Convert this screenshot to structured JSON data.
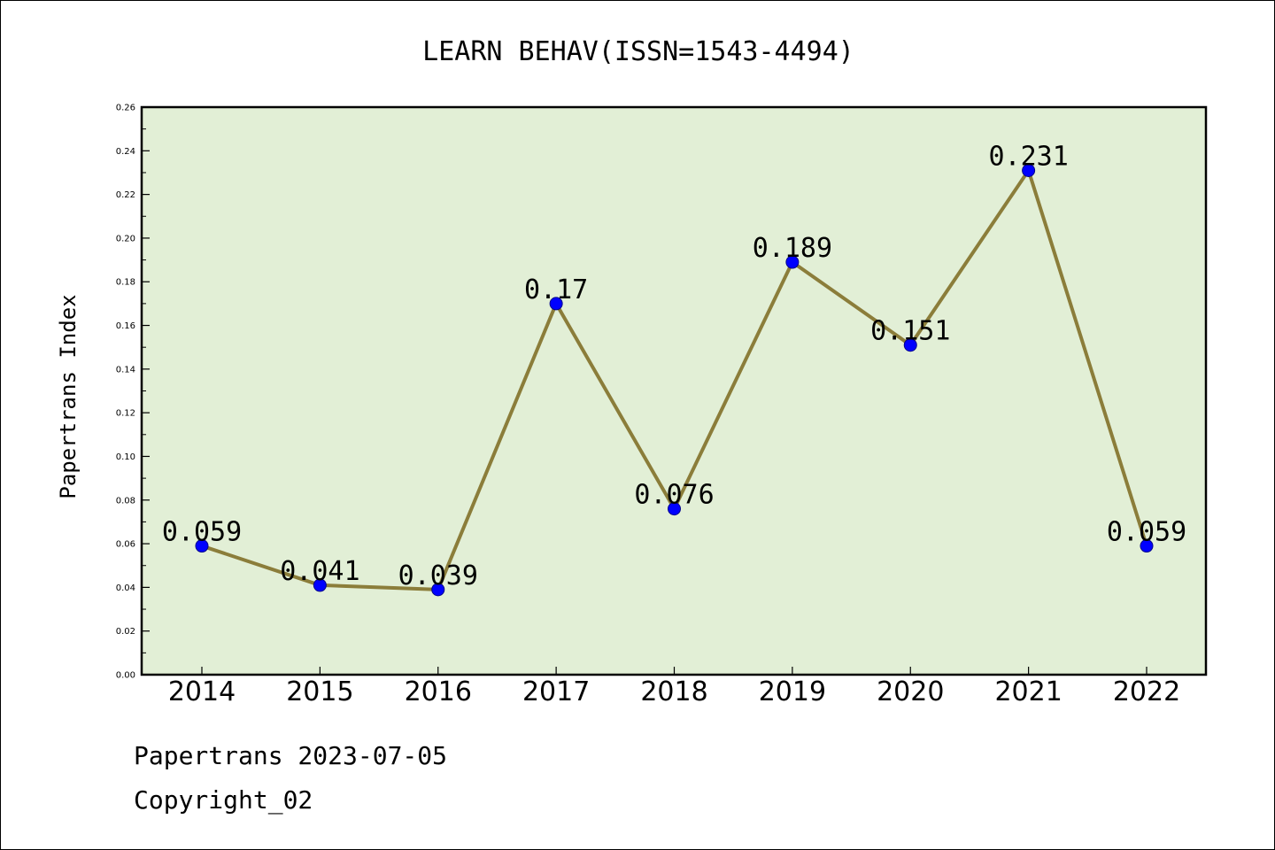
{
  "chart_data": {
    "type": "line",
    "title": "LEARN BEHAV(ISSN=1543-4494)",
    "xlabel": "",
    "ylabel": "Papertrans Index",
    "categories": [
      "2014",
      "2015",
      "2016",
      "2017",
      "2018",
      "2019",
      "2020",
      "2021",
      "2022"
    ],
    "series": [
      {
        "values": [
          0.059,
          0.041,
          0.039,
          0.17,
          0.076,
          0.189,
          0.151,
          0.231,
          0.059
        ],
        "labels": [
          "0.059",
          "0.041",
          "0.039",
          "0.17",
          "0.076",
          "0.189",
          "0.151",
          "0.231",
          "0.059"
        ]
      }
    ],
    "ylim": [
      0,
      0.26
    ],
    "yticks": [
      "0.00",
      "0.02",
      "0.04",
      "0.06",
      "0.08",
      "0.10",
      "0.12",
      "0.14",
      "0.16",
      "0.18",
      "0.20",
      "0.22",
      "0.24",
      "0.26"
    ],
    "grid": false,
    "colors": {
      "plot_background": "#e2efd6",
      "line": "#8b7d3a",
      "marker": "#0000ff",
      "marker_edge": "#00008b",
      "axes": "#000000"
    }
  },
  "footer": {
    "date_line": "Papertrans 2023-07-05",
    "copyright_line": "Copyright_02"
  }
}
